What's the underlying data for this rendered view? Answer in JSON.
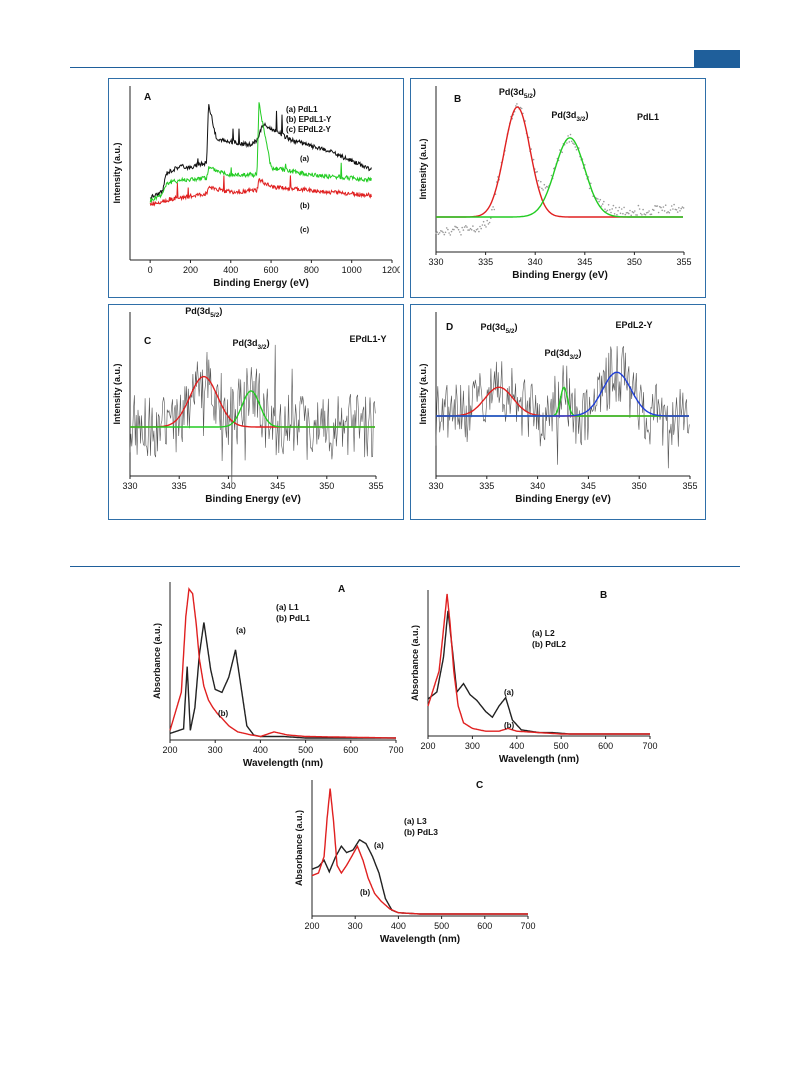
{
  "chart_data": [
    {
      "id": "xps-A",
      "type": "line",
      "panel_letter": "A",
      "xlabel": "Binding Energy (eV)",
      "ylabel": "Intensity (a.u.)",
      "xlim": [
        -100,
        1200
      ],
      "xticks": [
        0,
        200,
        400,
        600,
        800,
        1000,
        1200
      ],
      "legend": [
        "(a) PdL1",
        "(b) EPdL1-Y",
        "(c) EPdL2-Y"
      ],
      "curve_labels": [
        "(a)",
        "(b)",
        "(c)"
      ],
      "series": [
        {
          "color": "#111111",
          "x": [
            0,
            60,
            80,
            150,
            200,
            280,
            290,
            330,
            400,
            500,
            530,
            560,
            700,
            900,
            1100
          ],
          "y": [
            3.6,
            3.9,
            5.0,
            5.4,
            5.3,
            5.6,
            9.0,
            6.9,
            6.8,
            6.6,
            6.9,
            7.8,
            6.9,
            6.2,
            5.2
          ]
        },
        {
          "color": "#22cc22",
          "x": [
            0,
            60,
            80,
            150,
            280,
            290,
            400,
            530,
            540,
            600,
            800,
            1000,
            1100
          ],
          "y": [
            3.4,
            3.8,
            4.4,
            4.6,
            4.7,
            5.3,
            4.9,
            4.9,
            9.0,
            5.3,
            4.9,
            4.7,
            4.6
          ]
        },
        {
          "color": "#e02020",
          "x": [
            0,
            100,
            280,
            290,
            400,
            530,
            540,
            600,
            800,
            1000,
            1100
          ],
          "y": [
            3.2,
            3.5,
            3.8,
            4.2,
            3.9,
            4.0,
            4.6,
            4.2,
            4.0,
            3.8,
            3.7
          ]
        }
      ]
    },
    {
      "id": "xps-B",
      "type": "line",
      "panel_letter": "B",
      "tag": "PdL1",
      "xlabel": "Binding Energy (eV)",
      "ylabel": "Intensity (a.u.)",
      "xlim": [
        330,
        355
      ],
      "xticks": [
        330,
        335,
        340,
        345,
        350,
        355
      ],
      "peak_labels": [
        {
          "text": "Pd(3d",
          "sub": "5/2",
          "tail": ")",
          "x": 338.2
        },
        {
          "text": "Pd(3d",
          "sub": "3/2",
          "tail": ")",
          "x": 343.5
        }
      ],
      "series": [
        {
          "color": "#e02020",
          "center": 338.2,
          "sigma": 1.3,
          "amplitude": 1.0
        },
        {
          "color": "#22cc22",
          "center": 343.5,
          "sigma": 1.5,
          "amplitude": 0.72
        }
      ]
    },
    {
      "id": "xps-C",
      "type": "line",
      "panel_letter": "C",
      "tag": "EPdL1-Y",
      "xlabel": "Binding Energy (eV)",
      "ylabel": "Intensity (a.u.)",
      "xlim": [
        330,
        355
      ],
      "xticks": [
        330,
        335,
        340,
        345,
        350,
        355
      ],
      "peak_labels": [
        {
          "text": "Pd(3d",
          "sub": "5/2",
          "tail": ")",
          "x": 337.5
        },
        {
          "text": "Pd(3d",
          "sub": "3/2",
          "tail": ")",
          "x": 342.3
        }
      ],
      "series": [
        {
          "color": "#e02020",
          "center": 337.5,
          "sigma": 1.4,
          "amplitude": 0.42
        },
        {
          "color": "#22cc22",
          "center": 342.3,
          "sigma": 0.9,
          "amplitude": 0.3
        }
      ]
    },
    {
      "id": "xps-D",
      "type": "line",
      "panel_letter": "D",
      "tag": "EPdL2-Y",
      "xlabel": "Binding Energy (eV)",
      "ylabel": "Intensity (a.u.)",
      "xlim": [
        330,
        355
      ],
      "xticks": [
        330,
        335,
        340,
        345,
        350,
        355
      ],
      "peak_labels": [
        {
          "text": "Pd(3d",
          "sub": "5/2",
          "tail": ")",
          "x": 336.2
        },
        {
          "text": "Pd(3d",
          "sub": "3/2",
          "tail": ")",
          "x": 342.5
        }
      ],
      "series": [
        {
          "color": "#e02020",
          "center": 336.2,
          "sigma": 1.4,
          "amplitude": 0.25
        },
        {
          "color": "#22cc22",
          "center": 342.6,
          "sigma": 0.35,
          "amplitude": 0.25
        },
        {
          "color": "#1f3fd8",
          "center": 347.8,
          "sigma": 1.4,
          "amplitude": 0.38
        }
      ]
    },
    {
      "id": "uv-A",
      "type": "line",
      "panel_letter": "A",
      "xlabel": "Wavelength (nm)",
      "ylabel": "Absorbance (a.u.)",
      "xlim": [
        200,
        700
      ],
      "xticks": [
        200,
        300,
        400,
        500,
        600,
        700
      ],
      "legend": [
        "(a) L1",
        "(b) PdL1"
      ],
      "curve_labels": [
        "(a)",
        "(b)"
      ],
      "series": [
        {
          "color": "#222222",
          "x": [
            200,
            230,
            238,
            245,
            255,
            265,
            275,
            290,
            300,
            315,
            330,
            345,
            355,
            370,
            385,
            400,
            450,
            500,
            700
          ],
          "y": [
            0.03,
            0.06,
            0.47,
            0.05,
            0.2,
            0.55,
            0.76,
            0.45,
            0.32,
            0.3,
            0.4,
            0.58,
            0.38,
            0.08,
            0.02,
            0.01,
            0.01,
            0.0,
            0.0
          ]
        },
        {
          "color": "#e02020",
          "x": [
            200,
            225,
            235,
            242,
            250,
            258,
            265,
            275,
            285,
            295,
            305,
            315,
            330,
            350,
            380,
            400,
            430,
            460,
            500,
            700
          ],
          "y": [
            0.05,
            0.3,
            0.8,
            0.98,
            0.95,
            0.75,
            0.52,
            0.34,
            0.25,
            0.2,
            0.16,
            0.13,
            0.08,
            0.04,
            0.02,
            0.01,
            0.04,
            0.02,
            0.01,
            0.0
          ]
        }
      ]
    },
    {
      "id": "uv-B",
      "type": "line",
      "panel_letter": "B",
      "xlabel": "Wavelength (nm)",
      "ylabel": "Absorbance (a.u.)",
      "xlim": [
        200,
        700
      ],
      "xticks": [
        200,
        300,
        400,
        500,
        600,
        700
      ],
      "legend": [
        "(a) L2",
        "(b) PdL2"
      ],
      "curve_labels": [
        "(a)",
        "(b)"
      ],
      "series": [
        {
          "color": "#222222",
          "x": [
            200,
            220,
            235,
            245,
            255,
            265,
            280,
            295,
            310,
            330,
            345,
            360,
            375,
            390,
            410,
            450,
            480,
            520,
            700
          ],
          "y": [
            0.25,
            0.3,
            0.55,
            0.88,
            0.6,
            0.3,
            0.36,
            0.28,
            0.24,
            0.16,
            0.12,
            0.2,
            0.26,
            0.1,
            0.03,
            0.01,
            0.01,
            0.0,
            0.0
          ]
        },
        {
          "color": "#e02020",
          "x": [
            200,
            225,
            235,
            243,
            250,
            258,
            268,
            280,
            300,
            330,
            360,
            380,
            400,
            450,
            500,
            700
          ],
          "y": [
            0.2,
            0.45,
            0.75,
            1.0,
            0.78,
            0.45,
            0.2,
            0.08,
            0.04,
            0.02,
            0.02,
            0.04,
            0.02,
            0.01,
            0.0,
            0.0
          ]
        }
      ]
    },
    {
      "id": "uv-C",
      "type": "line",
      "panel_letter": "C",
      "xlabel": "Wavelength (nm)",
      "ylabel": "Absorbance (a.u.)",
      "xlim": [
        200,
        700
      ],
      "xticks": [
        200,
        300,
        400,
        500,
        600,
        700
      ],
      "legend": [
        "(a) L3",
        "(b) PdL3"
      ],
      "curve_labels": [
        "(a)",
        "(b)"
      ],
      "series": [
        {
          "color": "#222222",
          "x": [
            200,
            215,
            228,
            240,
            255,
            268,
            280,
            295,
            310,
            325,
            340,
            355,
            370,
            385,
            400,
            450,
            700
          ],
          "y": [
            0.35,
            0.37,
            0.42,
            0.33,
            0.45,
            0.53,
            0.48,
            0.5,
            0.58,
            0.55,
            0.45,
            0.32,
            0.12,
            0.03,
            0.01,
            0.0,
            0.0
          ]
        },
        {
          "color": "#e02020",
          "x": [
            200,
            215,
            228,
            235,
            242,
            250,
            258,
            268,
            280,
            292,
            305,
            318,
            330,
            345,
            360,
            380,
            400,
            450,
            700
          ],
          "y": [
            0.3,
            0.32,
            0.45,
            0.75,
            0.98,
            0.72,
            0.38,
            0.32,
            0.38,
            0.45,
            0.53,
            0.42,
            0.28,
            0.16,
            0.1,
            0.04,
            0.01,
            0.0,
            0.0
          ]
        }
      ]
    }
  ]
}
